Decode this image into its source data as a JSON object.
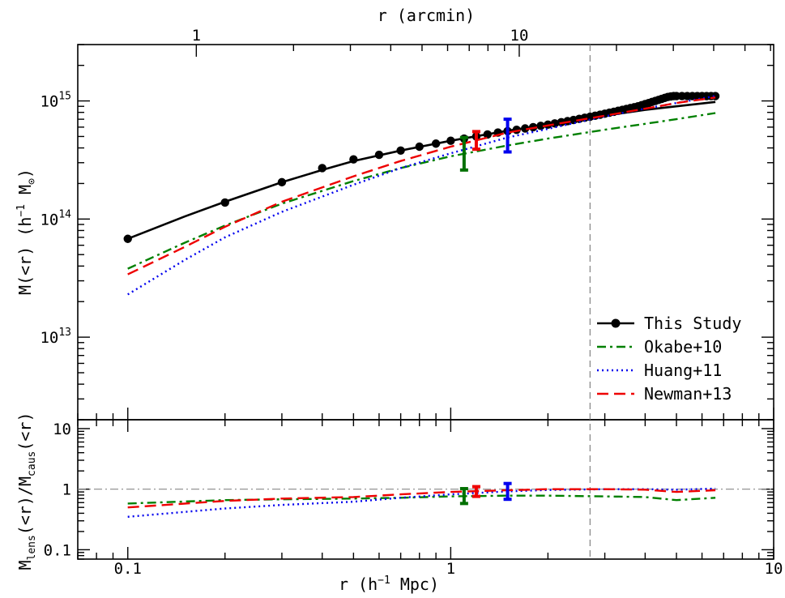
{
  "chart_data": [
    {
      "type": "line",
      "panel": "upper",
      "xlabel_top": "r (arcmin)",
      "top_axis_ticks": [
        "1",
        "10"
      ],
      "ylabel": "M(<r)  (h^-1 M_sun)",
      "ylabel_parts": {
        "main": "M(<r)  (h",
        "sup": "−1",
        "unit": " M",
        "sun": "⊙",
        "close": ")"
      },
      "x_scale": "log",
      "y_scale": "log",
      "xlim": [
        0.07,
        10
      ],
      "ylim": [
        2000000000000.0,
        3000000000000000.0
      ],
      "y_tick_labels": [
        {
          "value": 10000000000000.0,
          "base": "10",
          "exp": "13"
        },
        {
          "value": 100000000000000.0,
          "base": "10",
          "exp": "14"
        },
        {
          "value": 1000000000000000.0,
          "base": "10",
          "exp": "15"
        }
      ],
      "vertical_dashed_line_x": 2.7,
      "legend_position": "bottom-right",
      "series": [
        {
          "name": "This Study",
          "color": "#000000",
          "style": "solid-with-points",
          "x": [
            0.1,
            0.2,
            0.3,
            0.4,
            0.5,
            0.6,
            0.7,
            0.8,
            0.9,
            1.0,
            1.1,
            1.2,
            1.3,
            1.4,
            1.5,
            1.6,
            1.7,
            1.8,
            1.9,
            2.0,
            2.1,
            2.2,
            2.3,
            2.4,
            2.5,
            2.6,
            2.7,
            2.8,
            2.9,
            3.0,
            3.1,
            3.2,
            3.3,
            3.4,
            3.5,
            3.6,
            3.7,
            3.8,
            3.9,
            4.0,
            4.1,
            4.2,
            4.3,
            4.4,
            4.5,
            4.6,
            4.7,
            4.8,
            4.9,
            5.0,
            5.2,
            5.4,
            5.6,
            5.8,
            6.0,
            6.2,
            6.4,
            6.6
          ],
          "y": [
            68000000000000.0,
            138000000000000.0,
            205000000000000.0,
            270000000000000.0,
            320000000000000.0,
            350000000000000.0,
            380000000000000.0,
            410000000000000.0,
            435000000000000.0,
            460000000000000.0,
            480000000000000.0,
            500000000000000.0,
            520000000000000.0,
            540000000000000.0,
            555000000000000.0,
            570000000000000.0,
            585000000000000.0,
            600000000000000.0,
            615000000000000.0,
            630000000000000.0,
            645000000000000.0,
            660000000000000.0,
            675000000000000.0,
            690000000000000.0,
            705000000000000.0,
            720000000000000.0,
            735000000000000.0,
            750000000000000.0,
            765000000000000.0,
            780000000000000.0,
            795000000000000.0,
            810000000000000.0,
            825000000000000.0,
            840000000000000.0,
            855000000000000.0,
            870000000000000.0,
            885000000000000.0,
            900000000000000.0,
            920000000000000.0,
            940000000000000.0,
            960000000000000.0,
            980000000000000.0,
            1000000000000000.0,
            1020000000000000.0,
            1040000000000000.0,
            1060000000000000.0,
            1080000000000000.0,
            1090000000000000.0,
            1100000000000000.0,
            1100000000000000.0,
            1100000000000000.0,
            1100000000000000.0,
            1100000000000000.0,
            1100000000000000.0,
            1100000000000000.0,
            1100000000000000.0,
            1100000000000000.0,
            1100000000000000.0
          ],
          "curve_x": [
            0.1,
            0.15,
            0.2,
            0.3,
            0.4,
            0.5,
            0.7,
            1.0,
            1.5,
            2.0,
            3.0,
            4.0,
            5.0,
            6.6
          ],
          "curve_y": [
            68000000000000.0,
            105000000000000.0,
            140000000000000.0,
            205000000000000.0,
            260000000000000.0,
            310000000000000.0,
            380000000000000.0,
            460000000000000.0,
            560000000000000.0,
            630000000000000.0,
            750000000000000.0,
            840000000000000.0,
            900000000000000.0,
            980000000000000.0
          ]
        },
        {
          "name": "Okabe+10",
          "color": "#008000",
          "style": "dash-dot",
          "x": [
            0.1,
            0.15,
            0.2,
            0.3,
            0.5,
            0.7,
            1.0,
            1.5,
            2.0,
            3.0,
            4.0,
            5.0,
            6.6
          ],
          "y": [
            38000000000000.0,
            63000000000000.0,
            88000000000000.0,
            135000000000000.0,
            210000000000000.0,
            270000000000000.0,
            340000000000000.0,
            420000000000000.0,
            480000000000000.0,
            570000000000000.0,
            640000000000000.0,
            700000000000000.0,
            790000000000000.0
          ]
        },
        {
          "name": "Huang+11",
          "color": "#0000ee",
          "style": "dotted",
          "x": [
            0.1,
            0.15,
            0.2,
            0.3,
            0.5,
            0.7,
            1.0,
            1.5,
            2.0,
            3.0,
            4.0,
            5.0,
            6.6
          ],
          "y": [
            23000000000000.0,
            45000000000000.0,
            70000000000000.0,
            115000000000000.0,
            195000000000000.0,
            270000000000000.0,
            360000000000000.0,
            490000000000000.0,
            580000000000000.0,
            740000000000000.0,
            860000000000000.0,
            960000000000000.0,
            1100000000000000.0
          ]
        },
        {
          "name": "Newman+13",
          "color": "#ee0000",
          "style": "dashed",
          "x": [
            0.1,
            0.15,
            0.2,
            0.3,
            0.5,
            0.7,
            1.0,
            1.5,
            2.0,
            3.0,
            4.0,
            5.0,
            6.6
          ],
          "y": [
            34000000000000.0,
            58000000000000.0,
            86000000000000.0,
            140000000000000.0,
            230000000000000.0,
            310000000000000.0,
            410000000000000.0,
            540000000000000.0,
            620000000000000.0,
            750000000000000.0,
            860000000000000.0,
            960000000000000.0,
            1070000000000000.0
          ]
        }
      ],
      "error_bars": [
        {
          "color": "#007000",
          "x": 1.1,
          "y_low": 260000000000000.0,
          "y_high": 490000000000000.0
        },
        {
          "color": "#ee0000",
          "x": 1.2,
          "y_low": 390000000000000.0,
          "y_high": 550000000000000.0
        },
        {
          "color": "#0000ee",
          "x": 1.5,
          "y_low": 370000000000000.0,
          "y_high": 700000000000000.0
        }
      ]
    },
    {
      "type": "line",
      "panel": "lower",
      "xlabel": "r  (h^-1 Mpc)",
      "xlabel_parts": {
        "main": "r  (h",
        "sup": "−1",
        "close": " Mpc)"
      },
      "ylabel": "M_lens(<r)/M_caus(<r)",
      "ylabel_parts": {
        "m1": "M",
        "s1": "lens",
        "mid": "(<r)/M",
        "s2": "caus",
        "end": "(<r)"
      },
      "x_scale": "log",
      "y_scale": "log",
      "xlim": [
        0.07,
        10
      ],
      "ylim": [
        0.07,
        14
      ],
      "x_tick_labels": [
        "0.1",
        "1",
        "10"
      ],
      "y_tick_labels": [
        "0.1",
        "1",
        "10"
      ],
      "horizontal_reference_y": 1,
      "vertical_dashed_line_x": 2.7,
      "series": [
        {
          "name": "Okabe+10",
          "color": "#008000",
          "style": "dash-dot",
          "x": [
            0.1,
            0.2,
            0.3,
            0.5,
            0.7,
            1.0,
            1.5,
            2.0,
            3.0,
            4.0,
            5.0,
            6.6
          ],
          "y": [
            0.58,
            0.66,
            0.68,
            0.7,
            0.72,
            0.76,
            0.78,
            0.78,
            0.76,
            0.74,
            0.66,
            0.72
          ]
        },
        {
          "name": "Huang+11",
          "color": "#0000ee",
          "style": "dotted",
          "x": [
            0.1,
            0.2,
            0.3,
            0.5,
            0.7,
            1.0,
            1.5,
            2.0,
            3.0,
            4.0,
            5.0,
            6.6
          ],
          "y": [
            0.35,
            0.48,
            0.55,
            0.62,
            0.72,
            0.82,
            0.92,
            0.97,
            1.0,
            1.0,
            0.98,
            1.02
          ]
        },
        {
          "name": "Newman+13",
          "color": "#ee0000",
          "style": "dashed",
          "x": [
            0.1,
            0.2,
            0.3,
            0.5,
            0.7,
            1.0,
            1.5,
            2.0,
            3.0,
            4.0,
            5.0,
            6.6
          ],
          "y": [
            0.5,
            0.64,
            0.7,
            0.74,
            0.82,
            0.9,
            0.96,
            1.0,
            1.0,
            0.98,
            0.9,
            0.96
          ]
        }
      ],
      "error_bars": [
        {
          "color": "#007000",
          "x": 1.1,
          "y_low": 0.58,
          "y_high": 1.02
        },
        {
          "color": "#ee0000",
          "x": 1.2,
          "y_low": 0.76,
          "y_high": 1.1
        },
        {
          "color": "#0000ee",
          "x": 1.5,
          "y_low": 0.68,
          "y_high": 1.24
        }
      ]
    }
  ],
  "legend": {
    "items": [
      {
        "label": "This Study",
        "color": "#000000",
        "style": "solid-with-points"
      },
      {
        "label": "Okabe+10",
        "color": "#008000",
        "style": "dash-dot"
      },
      {
        "label": "Huang+11",
        "color": "#0000ee",
        "style": "dotted"
      },
      {
        "label": "Newman+13",
        "color": "#ee0000",
        "style": "dashed"
      }
    ]
  }
}
